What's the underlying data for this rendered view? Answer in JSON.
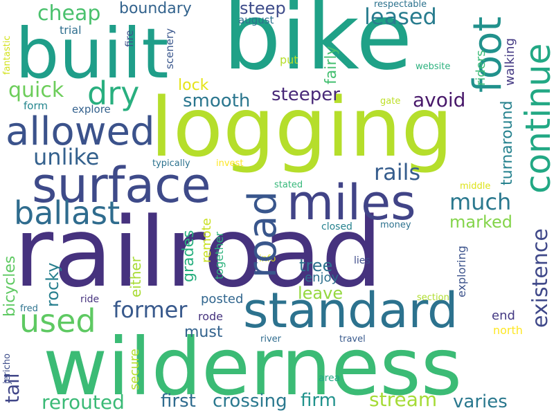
{
  "words": [
    {
      "id": "railroad",
      "text": "railroad",
      "color": "#46327e"
    },
    {
      "id": "bike",
      "text": "bike",
      "color": "#1fa187"
    },
    {
      "id": "built",
      "text": "built",
      "color": "#1f9e89"
    },
    {
      "id": "logging",
      "text": "logging",
      "color": "#b5de2b"
    },
    {
      "id": "wilderness",
      "text": "wilderness",
      "color": "#3bbb75"
    },
    {
      "id": "surface",
      "text": "surface",
      "color": "#3e4a89"
    },
    {
      "id": "standard",
      "text": "standard",
      "color": "#2c728e"
    },
    {
      "id": "miles",
      "text": "miles",
      "color": "#414487"
    },
    {
      "id": "allowed",
      "text": "allowed",
      "color": "#3b528b"
    },
    {
      "id": "continue",
      "text": "continue",
      "color": "#22a884"
    },
    {
      "id": "road",
      "text": "road",
      "color": "#39568c"
    },
    {
      "id": "foot",
      "text": "foot",
      "color": "#21918c"
    },
    {
      "id": "dry",
      "text": "dry",
      "color": "#29af7f"
    },
    {
      "id": "ballast",
      "text": "ballast",
      "color": "#2f6c8e"
    },
    {
      "id": "used",
      "text": "used",
      "color": "#5ec962"
    },
    {
      "id": "cheap",
      "text": "cheap",
      "color": "#4ac16d"
    },
    {
      "id": "quick",
      "text": "quick",
      "color": "#6ccd5a"
    },
    {
      "id": "unlike",
      "text": "unlike",
      "color": "#34618d"
    },
    {
      "id": "former",
      "text": "former",
      "color": "#38598c"
    },
    {
      "id": "rails",
      "text": "rails",
      "color": "#365d8d"
    },
    {
      "id": "much",
      "text": "much",
      "color": "#2a788e"
    },
    {
      "id": "leased",
      "text": "leased",
      "color": "#287c8e"
    },
    {
      "id": "steep",
      "text": "steep",
      "color": "#3e4c8a"
    },
    {
      "id": "boundary",
      "text": "boundary",
      "color": "#33638d"
    },
    {
      "id": "steeper",
      "text": "steeper",
      "color": "#482878"
    },
    {
      "id": "avoid",
      "text": "avoid",
      "color": "#48186a"
    },
    {
      "id": "smooth",
      "text": "smooth",
      "color": "#2a768e"
    },
    {
      "id": "existence",
      "text": "existence",
      "color": "#3f4889"
    },
    {
      "id": "turnaround",
      "text": "turnaround",
      "color": "#26828e"
    },
    {
      "id": "marked",
      "text": "marked",
      "color": "#84d44b"
    },
    {
      "id": "rocky",
      "text": "rocky",
      "color": "#277f8e"
    },
    {
      "id": "grades",
      "text": "grades",
      "color": "#29af7f"
    },
    {
      "id": "bicycles",
      "text": "bicycles",
      "color": "#5ec962"
    },
    {
      "id": "tree",
      "text": "tree",
      "color": "#2c728e"
    },
    {
      "id": "leave",
      "text": "leave",
      "color": "#95d840"
    },
    {
      "id": "stream",
      "text": "stream",
      "color": "#a5db36"
    },
    {
      "id": "varies",
      "text": "varies",
      "color": "#2a788e"
    },
    {
      "id": "firm",
      "text": "firm",
      "color": "#20928c"
    },
    {
      "id": "crossing",
      "text": "crossing",
      "color": "#2a788e"
    },
    {
      "id": "first",
      "text": "first",
      "color": "#2f6b8e"
    },
    {
      "id": "rerouted",
      "text": "rerouted",
      "color": "#3aba76"
    },
    {
      "id": "tail",
      "text": "tail",
      "color": "#404688"
    },
    {
      "id": "must",
      "text": "must",
      "color": "#33638d"
    },
    {
      "id": "secure",
      "text": "secure",
      "color": "#b5de2b"
    },
    {
      "id": "either",
      "text": "either",
      "color": "#a8db34"
    },
    {
      "id": "remote",
      "text": "remote",
      "color": "#c8e020"
    },
    {
      "id": "together",
      "text": "together",
      "color": "#2db27d"
    },
    {
      "id": "walking",
      "text": "walking",
      "color": "#443983"
    },
    {
      "id": "riders",
      "text": "riders",
      "color": "#3aba76"
    },
    {
      "id": "fairly",
      "text": "fairly",
      "color": "#44bf70"
    },
    {
      "id": "lock",
      "text": "lock",
      "color": "#e5e419"
    },
    {
      "id": "enjoy",
      "text": "enjoy",
      "color": "#2d708e"
    },
    {
      "id": "posted",
      "text": "posted",
      "color": "#31668e"
    },
    {
      "id": "rode",
      "text": "rode",
      "color": "#46337e"
    },
    {
      "id": "end",
      "text": "end",
      "color": "#443983"
    },
    {
      "id": "exploring",
      "text": "exploring",
      "color": "#3b528b"
    },
    {
      "id": "north",
      "text": "north",
      "color": "#fde725"
    },
    {
      "id": "trial",
      "text": "trial",
      "color": "#2e6e8e"
    },
    {
      "id": "fire",
      "text": "fire",
      "color": "#3b528b"
    },
    {
      "id": "scenery",
      "text": "scenery",
      "color": "#39568c"
    },
    {
      "id": "august",
      "text": "august",
      "color": "#2d708e"
    },
    {
      "id": "put",
      "text": "put",
      "color": "#b5de2b"
    },
    {
      "id": "respectable",
      "text": "respectable",
      "color": "#2c728e"
    },
    {
      "id": "website",
      "text": "website",
      "color": "#2cb17e"
    },
    {
      "id": "gate",
      "text": "gate",
      "color": "#bddf26"
    },
    {
      "id": "form",
      "text": "form",
      "color": "#24868e"
    },
    {
      "id": "explore",
      "text": "explore",
      "color": "#34618d"
    },
    {
      "id": "fantastic",
      "text": "fantastic",
      "color": "#d2e21b"
    },
    {
      "id": "typically",
      "text": "typically",
      "color": "#2c728e"
    },
    {
      "id": "invest",
      "text": "invest",
      "color": "#fde725"
    },
    {
      "id": "stated",
      "text": "stated",
      "color": "#35b779"
    },
    {
      "id": "middle",
      "text": "middle",
      "color": "#dde318"
    },
    {
      "id": "closed",
      "text": "closed",
      "color": "#26828e"
    },
    {
      "id": "money",
      "text": "money",
      "color": "#2c728e"
    },
    {
      "id": "info",
      "text": "info",
      "color": "#d8e219"
    },
    {
      "id": "lies",
      "text": "lies",
      "color": "#3e4c8a"
    },
    {
      "id": "fred",
      "text": "fred",
      "color": "#2c728e"
    },
    {
      "id": "ride",
      "text": "ride",
      "color": "#46337e"
    },
    {
      "id": "section",
      "text": "section",
      "color": "#b0dd2f"
    },
    {
      "id": "river",
      "text": "river",
      "color": "#2f6c8e"
    },
    {
      "id": "travel",
      "text": "travel",
      "color": "#38598c"
    },
    {
      "id": "jericho",
      "text": "jericho",
      "color": "#3d4d8a"
    },
    {
      "id": "area",
      "text": "area",
      "color": "#21a685"
    }
  ]
}
